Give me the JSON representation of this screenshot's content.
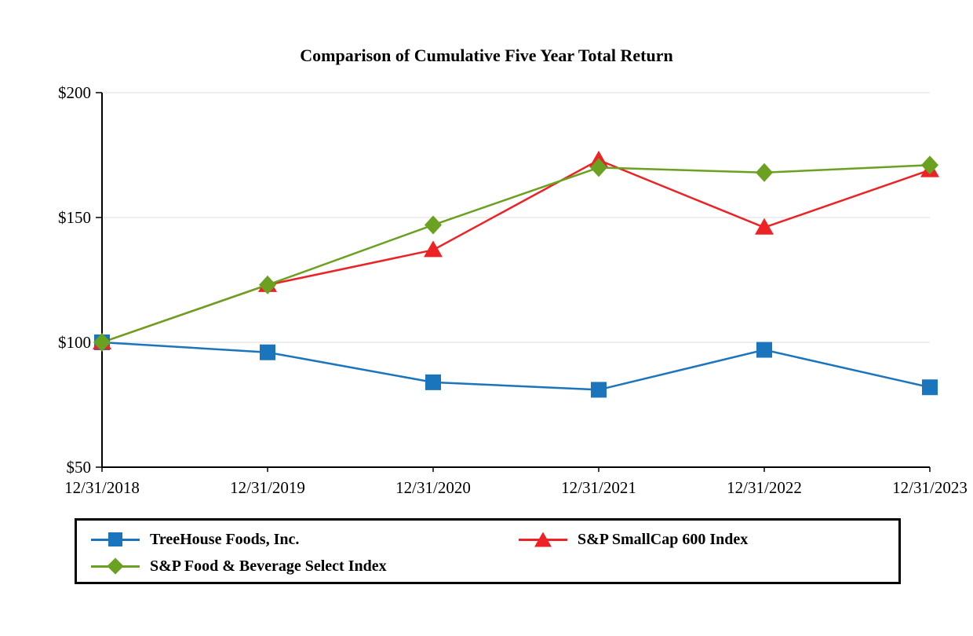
{
  "chart_data": {
    "type": "line",
    "title": "Comparison of Cumulative Five Year Total Return",
    "x_labels": [
      "12/31/2018",
      "12/31/2019",
      "12/31/2020",
      "12/31/2021",
      "12/31/2022",
      "12/31/2023"
    ],
    "y_ticks": [
      50,
      100,
      150,
      200
    ],
    "y_tick_labels": [
      "$50",
      "$100",
      "$150",
      "$200"
    ],
    "ylim": [
      50,
      200
    ],
    "grid": "horizontal",
    "legend_position": "bottom",
    "series": [
      {
        "name": "TreeHouse Foods, Inc.",
        "marker": "square",
        "color": "#1B75BC",
        "values": [
          100,
          96,
          84,
          81,
          97,
          82
        ]
      },
      {
        "name": "S&P SmallCap 600 Index",
        "marker": "triangle",
        "color": "#ED2224",
        "values": [
          100,
          123,
          137,
          173,
          146,
          169
        ]
      },
      {
        "name": "S&P Food & Beverage Select Index",
        "marker": "diamond",
        "color": "#6AA121",
        "values": [
          100,
          123,
          147,
          170,
          168,
          171
        ]
      }
    ]
  },
  "colors": {
    "axis": "#000000",
    "grid": "#DCDCDC",
    "background": "#FFFFFF",
    "legend_border": "#000000"
  }
}
